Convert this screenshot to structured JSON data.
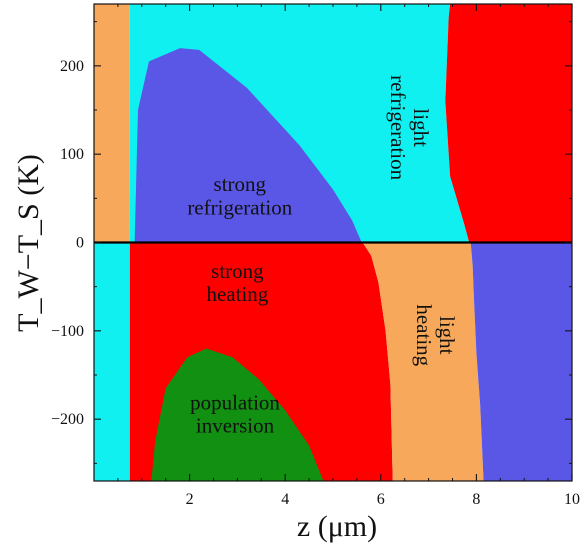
{
  "chart_data": {
    "type": "heatmap",
    "xlabel": "z (μm)",
    "ylabel": "T_W−T_S (K)",
    "xlim": [
      0,
      10
    ],
    "ylim": [
      -270,
      270
    ],
    "x_ticks": [
      "2",
      "4",
      "6",
      "8",
      "10"
    ],
    "x_tick_values": [
      2,
      4,
      6,
      8,
      10
    ],
    "y_ticks": [
      "200",
      "100",
      "0",
      "−100",
      "−200"
    ],
    "y_tick_values": [
      200,
      100,
      0,
      -100,
      -200
    ],
    "colors": {
      "strong_refrigeration": "#5b57e6",
      "light_refrigeration": "#10f0f0",
      "strong_heating": "#ff0000",
      "light_heating": "#f8a85a",
      "population_inversion": "#119011",
      "zero_line": "#000000"
    },
    "regions": [
      {
        "id": "upper-left-light-heating",
        "color_key": "light_heating",
        "points": [
          [
            0,
            0
          ],
          [
            0,
            270
          ],
          [
            0.75,
            270
          ],
          [
            0.75,
            0
          ]
        ]
      },
      {
        "id": "upper-light-refrigeration",
        "color_key": "light_refrigeration",
        "points": [
          [
            0.75,
            0
          ],
          [
            0.75,
            270
          ],
          [
            7.45,
            270
          ],
          [
            7.42,
            255
          ],
          [
            7.35,
            160
          ],
          [
            7.45,
            75
          ],
          [
            7.75,
            20
          ],
          [
            7.85,
            0
          ]
        ]
      },
      {
        "id": "upper-right-strong-heating",
        "color_key": "strong_heating",
        "points": [
          [
            7.85,
            0
          ],
          [
            7.75,
            20
          ],
          [
            7.45,
            75
          ],
          [
            7.35,
            160
          ],
          [
            7.42,
            255
          ],
          [
            7.45,
            270
          ],
          [
            10,
            270
          ],
          [
            10,
            0
          ]
        ]
      },
      {
        "id": "strong-refrigeration-dome",
        "color_key": "strong_refrigeration",
        "points": [
          [
            0.85,
            0
          ],
          [
            0.92,
            150
          ],
          [
            1.15,
            205
          ],
          [
            1.8,
            220
          ],
          [
            2.2,
            218
          ],
          [
            3.2,
            175
          ],
          [
            4.3,
            110
          ],
          [
            5.0,
            60
          ],
          [
            5.4,
            25
          ],
          [
            5.6,
            0
          ]
        ]
      },
      {
        "id": "lower-left-light-refrigeration",
        "color_key": "light_refrigeration",
        "points": [
          [
            0,
            0
          ],
          [
            0,
            -270
          ],
          [
            0.75,
            -270
          ],
          [
            0.75,
            0
          ]
        ]
      },
      {
        "id": "lower-strong-heating",
        "color_key": "strong_heating",
        "points": [
          [
            0.75,
            0
          ],
          [
            0.75,
            -270
          ],
          [
            6.25,
            -270
          ],
          [
            6.2,
            -160
          ],
          [
            6.1,
            -100
          ],
          [
            5.95,
            -45
          ],
          [
            5.8,
            -15
          ],
          [
            5.62,
            0
          ]
        ]
      },
      {
        "id": "lower-light-heating",
        "color_key": "light_heating",
        "points": [
          [
            5.62,
            0
          ],
          [
            5.8,
            -15
          ],
          [
            5.95,
            -45
          ],
          [
            6.1,
            -100
          ],
          [
            6.2,
            -160
          ],
          [
            6.25,
            -270
          ],
          [
            8.15,
            -270
          ],
          [
            8.08,
            -185
          ],
          [
            8.0,
            -125
          ],
          [
            7.95,
            -65
          ],
          [
            7.92,
            -25
          ],
          [
            7.88,
            0
          ]
        ]
      },
      {
        "id": "lower-right-strong-refrigeration",
        "color_key": "strong_refrigeration",
        "points": [
          [
            7.88,
            0
          ],
          [
            7.92,
            -25
          ],
          [
            7.95,
            -65
          ],
          [
            8.0,
            -125
          ],
          [
            8.08,
            -185
          ],
          [
            8.15,
            -270
          ],
          [
            10,
            -270
          ],
          [
            10,
            0
          ]
        ]
      },
      {
        "id": "population-inversion-dome",
        "color_key": "population_inversion",
        "points": [
          [
            1.2,
            -270
          ],
          [
            1.28,
            -225
          ],
          [
            1.5,
            -165
          ],
          [
            1.95,
            -130
          ],
          [
            2.35,
            -120
          ],
          [
            2.9,
            -130
          ],
          [
            3.45,
            -155
          ],
          [
            4.0,
            -190
          ],
          [
            4.5,
            -230
          ],
          [
            4.8,
            -270
          ]
        ]
      }
    ],
    "region_labels": [
      {
        "id": "strong-refrigeration",
        "lines": [
          "strong",
          "refrigeration"
        ],
        "x": 3.05,
        "y": 45,
        "rotation": 0
      },
      {
        "id": "light-refrigeration",
        "lines": [
          "light",
          "refrigeration"
        ],
        "x": 6.45,
        "y": 130,
        "rotation": 90
      },
      {
        "id": "strong-heating",
        "lines": [
          "strong",
          "heating"
        ],
        "x": 3.0,
        "y": -53,
        "rotation": 0
      },
      {
        "id": "light-heating",
        "lines": [
          "light",
          "heating"
        ],
        "x": 7.0,
        "y": -105,
        "rotation": 90
      },
      {
        "id": "population-inversion",
        "lines": [
          "population",
          "inversion"
        ],
        "x": 2.95,
        "y": -202,
        "rotation": 0
      }
    ],
    "zero_line_y": 0,
    "grid": false,
    "legend": "none"
  }
}
